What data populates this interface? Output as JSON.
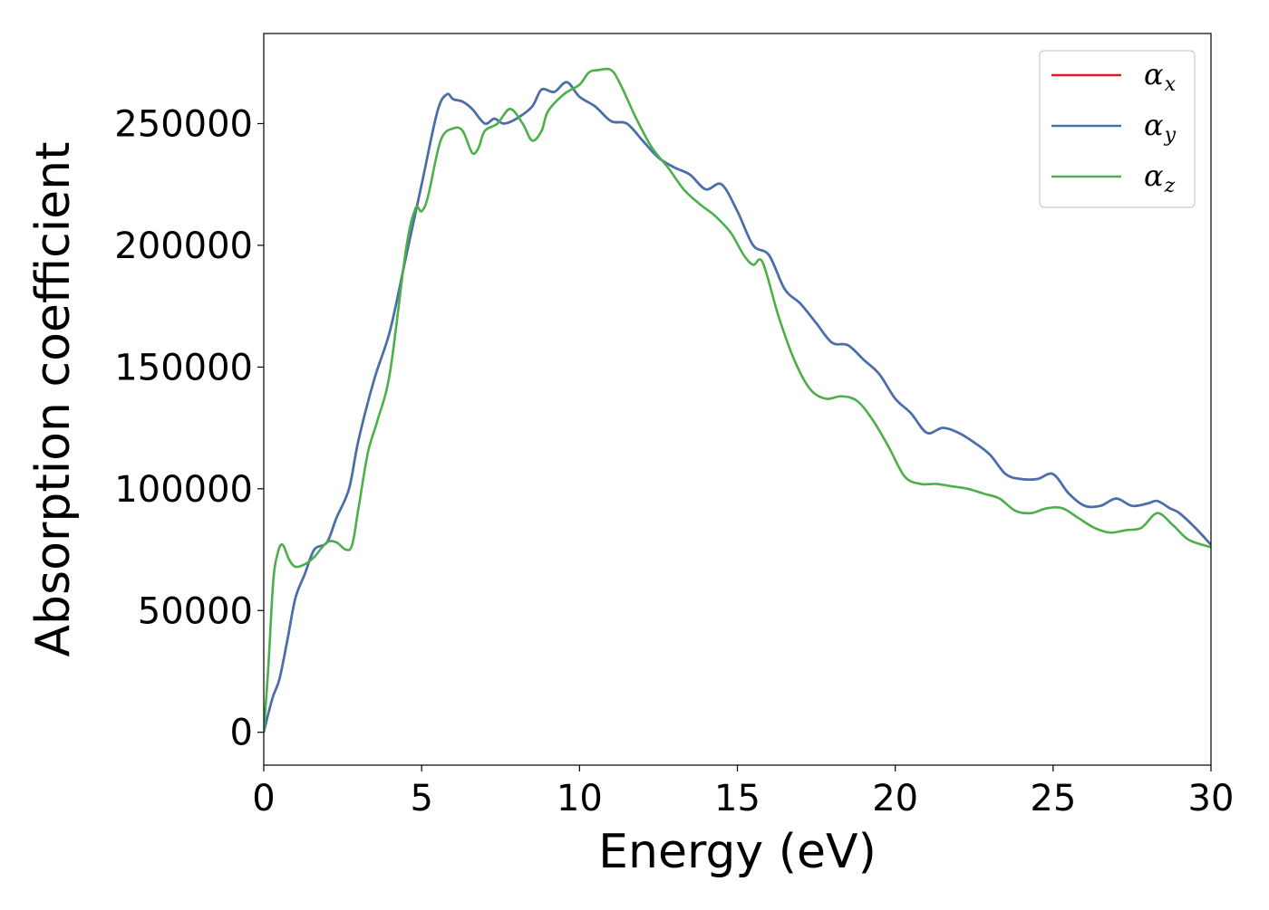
{
  "chart_data": {
    "type": "line",
    "title": "",
    "xlabel": "Energy (eV)",
    "ylabel": "Absorption coefficient",
    "xlim": [
      0,
      30
    ],
    "ylim": [
      -13500,
      287000
    ],
    "xticks": [
      0,
      5,
      10,
      15,
      20,
      25,
      30
    ],
    "yticks": [
      0,
      50000,
      100000,
      150000,
      200000,
      250000
    ],
    "grid": false,
    "legend_position": "upper right",
    "series": [
      {
        "name": "α_x",
        "label_base": "α",
        "label_sub": "x",
        "color": "#e41a1c",
        "x": [
          0,
          0.15,
          0.3,
          0.5,
          0.75,
          1.0,
          1.3,
          1.6,
          2.0,
          2.3,
          2.7,
          3.0,
          3.5,
          4.0,
          4.5,
          5.0,
          5.5,
          5.8,
          6.0,
          6.3,
          6.6,
          7.0,
          7.3,
          7.6,
          8.0,
          8.5,
          8.8,
          9.2,
          9.6,
          10.0,
          10.5,
          11.0,
          11.5,
          12.0,
          12.5,
          13.0,
          13.5,
          14.0,
          14.5,
          15.0,
          15.5,
          16.0,
          16.5,
          17.0,
          17.5,
          18.0,
          18.5,
          19.0,
          19.5,
          20.0,
          20.5,
          21.0,
          21.5,
          22.0,
          22.5,
          23.0,
          23.5,
          24.0,
          24.5,
          25.0,
          25.5,
          26.0,
          26.5,
          27.0,
          27.5,
          28.0,
          28.3,
          28.7,
          29.0,
          29.5,
          30.0
        ],
        "y": [
          0,
          8000,
          15000,
          22000,
          38000,
          55000,
          65000,
          75000,
          78000,
          88000,
          100000,
          120000,
          145000,
          165000,
          195000,
          225000,
          255000,
          262000,
          260000,
          259000,
          256000,
          250000,
          252000,
          250000,
          252000,
          257000,
          264000,
          263000,
          267000,
          261000,
          257000,
          251000,
          250000,
          243000,
          236000,
          232000,
          229000,
          223000,
          225000,
          214000,
          200000,
          196000,
          182000,
          176000,
          168000,
          160000,
          159000,
          153000,
          147000,
          137000,
          131000,
          123000,
          125000,
          123000,
          119000,
          114000,
          106000,
          104000,
          104000,
          106000,
          98000,
          93000,
          93000,
          96000,
          93000,
          94000,
          95000,
          92000,
          90000,
          84000,
          77000
        ]
      },
      {
        "name": "α_y",
        "label_base": "α",
        "label_sub": "y",
        "color": "#4472b1",
        "x": [
          0,
          0.15,
          0.3,
          0.5,
          0.75,
          1.0,
          1.3,
          1.6,
          2.0,
          2.3,
          2.7,
          3.0,
          3.5,
          4.0,
          4.5,
          5.0,
          5.5,
          5.8,
          6.0,
          6.3,
          6.6,
          7.0,
          7.3,
          7.6,
          8.0,
          8.5,
          8.8,
          9.2,
          9.6,
          10.0,
          10.5,
          11.0,
          11.5,
          12.0,
          12.5,
          13.0,
          13.5,
          14.0,
          14.5,
          15.0,
          15.5,
          16.0,
          16.5,
          17.0,
          17.5,
          18.0,
          18.5,
          19.0,
          19.5,
          20.0,
          20.5,
          21.0,
          21.5,
          22.0,
          22.5,
          23.0,
          23.5,
          24.0,
          24.5,
          25.0,
          25.5,
          26.0,
          26.5,
          27.0,
          27.5,
          28.0,
          28.3,
          28.7,
          29.0,
          29.5,
          30.0
        ],
        "y": [
          0,
          8000,
          15000,
          22000,
          38000,
          55000,
          65000,
          75000,
          78000,
          88000,
          100000,
          120000,
          145000,
          165000,
          195000,
          225000,
          255000,
          262000,
          260000,
          259000,
          256000,
          250000,
          252000,
          250000,
          252000,
          257000,
          264000,
          263000,
          267000,
          261000,
          257000,
          251000,
          250000,
          243000,
          236000,
          232000,
          229000,
          223000,
          225000,
          214000,
          200000,
          196000,
          182000,
          176000,
          168000,
          160000,
          159000,
          153000,
          147000,
          137000,
          131000,
          123000,
          125000,
          123000,
          119000,
          114000,
          106000,
          104000,
          104000,
          106000,
          98000,
          93000,
          93000,
          96000,
          93000,
          94000,
          95000,
          92000,
          90000,
          84000,
          77000
        ]
      },
      {
        "name": "α_z",
        "label_base": "α",
        "label_sub": "z",
        "color": "#4daf4a",
        "x": [
          0,
          0.15,
          0.3,
          0.45,
          0.6,
          0.8,
          1.0,
          1.3,
          1.6,
          2.0,
          2.3,
          2.6,
          2.8,
          3.0,
          3.3,
          3.6,
          4.0,
          4.5,
          4.8,
          5.0,
          5.2,
          5.6,
          6.0,
          6.3,
          6.6,
          6.8,
          7.0,
          7.4,
          7.8,
          8.2,
          8.5,
          8.8,
          9.0,
          9.5,
          10.0,
          10.3,
          10.6,
          11.0,
          11.3,
          11.8,
          12.3,
          12.8,
          13.3,
          13.8,
          14.3,
          14.8,
          15.2,
          15.5,
          15.8,
          16.3,
          16.8,
          17.3,
          17.8,
          18.3,
          18.8,
          19.3,
          19.8,
          20.3,
          20.8,
          21.3,
          21.8,
          22.3,
          22.8,
          23.3,
          23.8,
          24.3,
          24.8,
          25.3,
          25.8,
          26.3,
          26.8,
          27.3,
          27.8,
          28.3,
          28.8,
          29.3,
          30.0
        ],
        "y": [
          0,
          28000,
          62000,
          74000,
          77000,
          71000,
          68000,
          69000,
          72000,
          78000,
          78000,
          75000,
          77000,
          92000,
          115000,
          128000,
          148000,
          198000,
          215000,
          214000,
          220000,
          243000,
          248000,
          247000,
          238000,
          240000,
          247000,
          250000,
          256000,
          250000,
          243000,
          247000,
          255000,
          262000,
          266000,
          271000,
          272000,
          272000,
          266000,
          252000,
          240000,
          232000,
          223000,
          217000,
          212000,
          205000,
          196000,
          192000,
          193000,
          171000,
          153000,
          141000,
          137000,
          138000,
          136000,
          128000,
          117000,
          105000,
          102000,
          102000,
          101000,
          100000,
          98000,
          96000,
          91000,
          90000,
          92000,
          92000,
          88000,
          84000,
          82000,
          83000,
          84000,
          90000,
          85000,
          79000,
          76000
        ]
      }
    ]
  }
}
